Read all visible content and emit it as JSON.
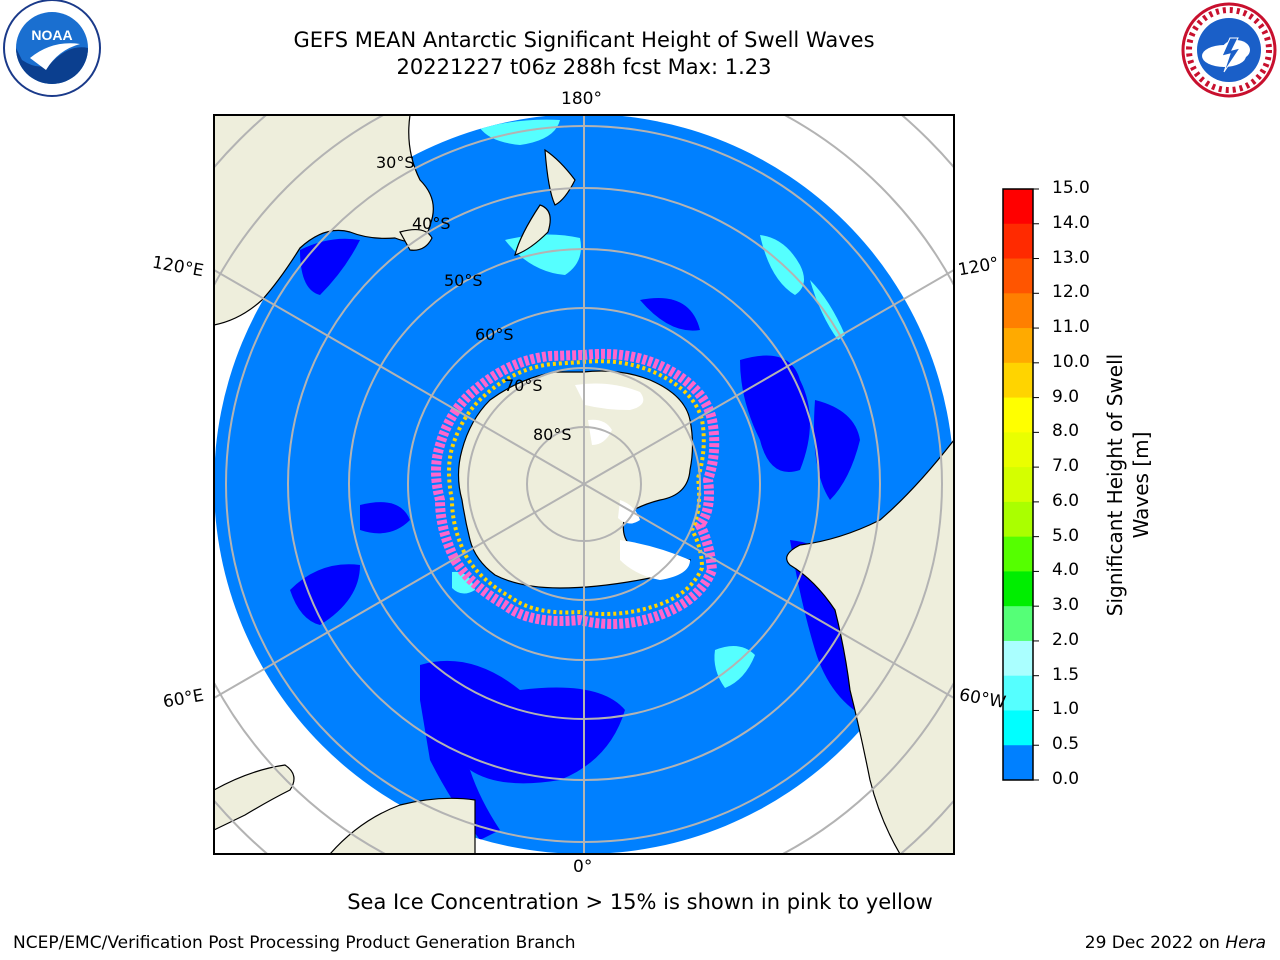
{
  "title_line1": "GEFS MEAN Antarctic Significant Height of Swell Waves",
  "title_line2": "20221227 t06z 288h fcst   Max: 1.23",
  "logos": {
    "left": "NOAA",
    "right": "National Weather Service"
  },
  "lon_labels": {
    "top": "180°",
    "bottom": "0°",
    "left_upper": "120°E",
    "left_lower": "60°E",
    "right_upper": "120°",
    "right_lower": "60°W"
  },
  "lat_labels": [
    "30°S",
    "40°S",
    "50°S",
    "60°S",
    "70°S",
    "80°S"
  ],
  "colorbar": {
    "label_line1": "Significant Height of Swell",
    "label_line2": "Waves [m]",
    "ticks": [
      "15.0",
      "14.0",
      "13.0",
      "12.0",
      "11.0",
      "10.0",
      "9.0",
      "8.0",
      "7.0",
      "6.0",
      "5.0",
      "4.0",
      "3.0",
      "2.0",
      "1.5",
      "1.0",
      "0.5",
      "0.0"
    ],
    "colors": [
      "#ff0000",
      "#ff2a00",
      "#ff5500",
      "#ff7f00",
      "#ffaa00",
      "#ffd400",
      "#ffff00",
      "#eaff00",
      "#d4ff00",
      "#aaff00",
      "#55ff00",
      "#00ee00",
      "#55ff77",
      "#aaffff",
      "#55ffff",
      "#00ffff",
      "#0080ff",
      "#0000ff"
    ]
  },
  "colors": {
    "ocean_main": "#0080ff",
    "ocean_low": "#0000ff",
    "land": "#eeeedc",
    "ice": "#ff66cc",
    "grid": "#b3b3b3"
  },
  "caption": "Sea Ice Concentration > 15% is shown in pink to yellow",
  "footer_left": "NCEP/EMC/Verification Post Processing Product Generation Branch",
  "footer_right_date": "29 Dec 2022 on ",
  "footer_right_host": "Hera"
}
